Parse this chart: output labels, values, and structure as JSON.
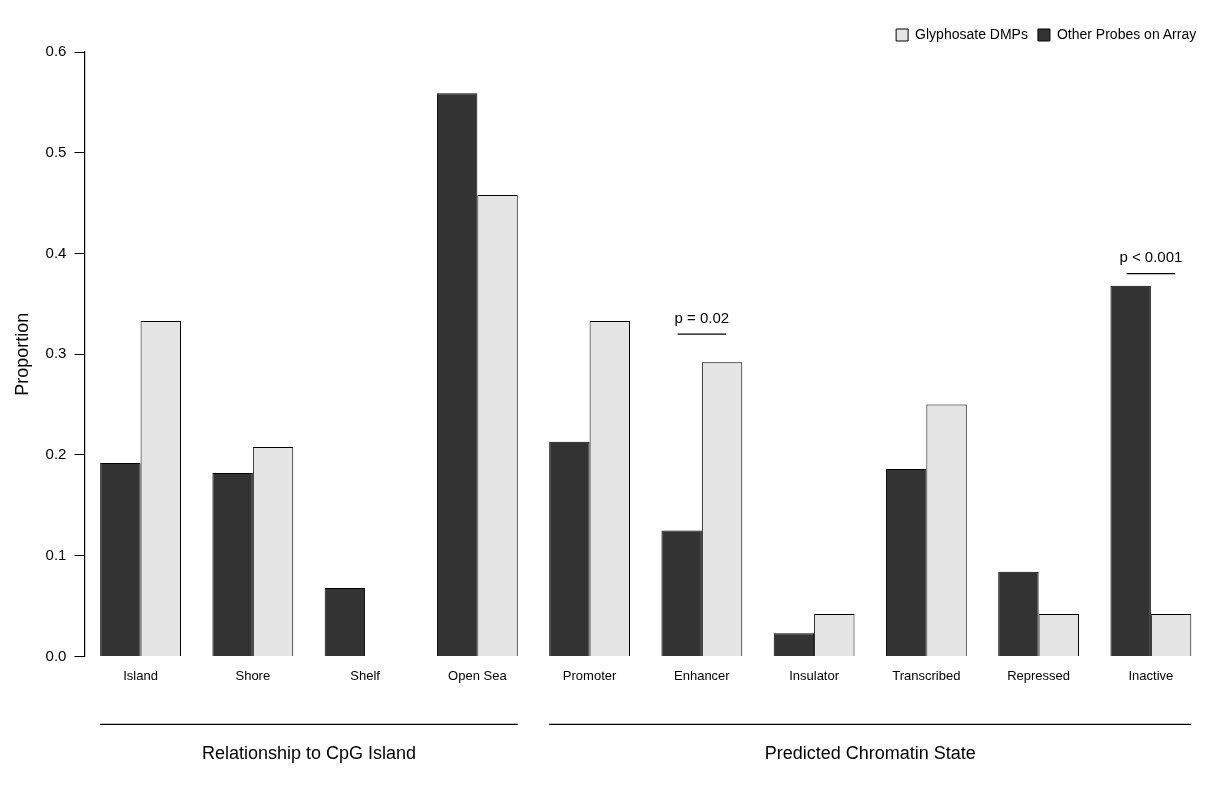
{
  "chart_data": {
    "type": "bar",
    "ylabel": "Proportion",
    "categories": [
      "Island",
      "Shore",
      "Shelf",
      "Open Sea",
      "Promoter",
      "Enhancer",
      "Insulator",
      "Transcribed",
      "Repressed",
      "Inactive"
    ],
    "series": [
      {
        "name": "Other Probes on Array",
        "color": "#333333",
        "values": [
          0.192,
          0.182,
          0.068,
          0.559,
          0.213,
          0.125,
          0.023,
          0.186,
          0.084,
          0.368
        ]
      },
      {
        "name": "Glyphosate DMPs",
        "color": "#e5e5e5",
        "values": [
          0.333,
          0.208,
          0,
          0.458,
          0.333,
          0.292,
          0.042,
          0.25,
          0.042,
          0.042
        ]
      }
    ],
    "ylim": [
      0,
      0.6
    ],
    "yticks": [
      {
        "value": 0,
        "label": "0.0"
      },
      0.1,
      0.2,
      0.3,
      0.4,
      0.5,
      0.6
    ],
    "grid": false,
    "legend": "top right",
    "annotations": [
      "p = 0.02",
      "p < 0.001",
      "Relationship to CpG Island",
      "Predicted Chromatin State"
    ]
  }
}
